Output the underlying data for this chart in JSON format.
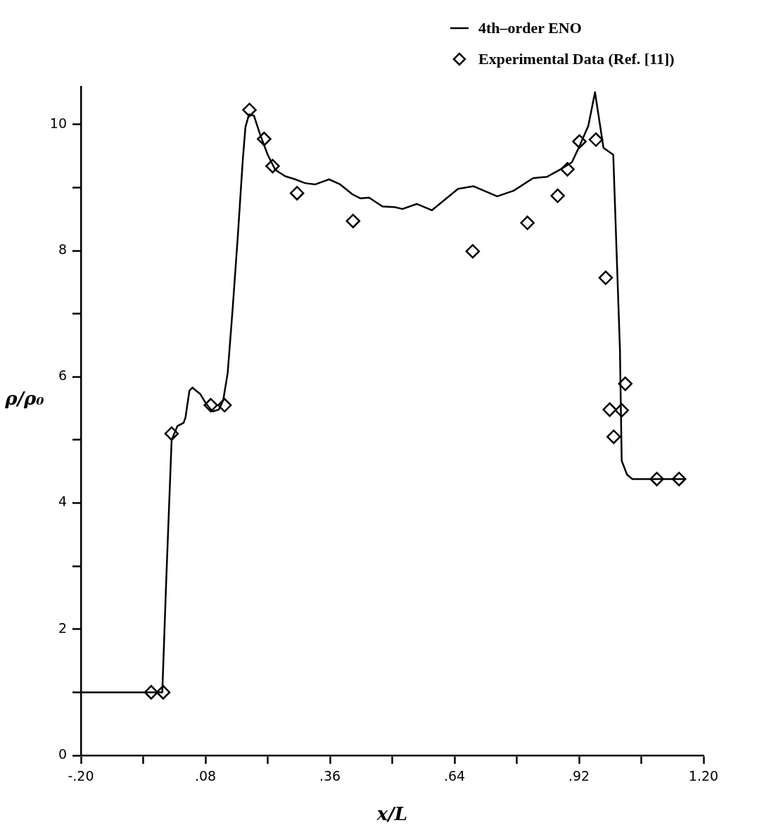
{
  "chart_data": {
    "type": "line",
    "xlabel": "x/L",
    "ylabel": "ρ/ρ₀",
    "xlim": [
      -0.2,
      1.2
    ],
    "xticks": [
      {
        "value": -0.2,
        "label": "-.20"
      },
      {
        "value": -0.06,
        "label": null
      },
      {
        "value": 0.08,
        "label": ".08"
      },
      {
        "value": 0.22,
        "label": null
      },
      {
        "value": 0.36,
        "label": ".36"
      },
      {
        "value": 0.5,
        "label": null
      },
      {
        "value": 0.64,
        "label": ".64"
      },
      {
        "value": 0.78,
        "label": null
      },
      {
        "value": 0.92,
        "label": ".92"
      },
      {
        "value": 1.06,
        "label": null
      },
      {
        "value": 1.2,
        "label": "1.20"
      }
    ],
    "ylim": [
      0,
      10.6
    ],
    "yticks": [
      0,
      {
        "value": 1,
        "label": null
      },
      2,
      {
        "value": 3,
        "label": null
      },
      4,
      {
        "value": 5,
        "label": null
      },
      6,
      {
        "value": 7,
        "label": null
      },
      8,
      {
        "value": 9,
        "label": null
      },
      10
    ],
    "grid": false,
    "legend": "top right",
    "series": [
      {
        "name": "4th–order ENO",
        "type": "line",
        "color": "#000000",
        "marker": "none",
        "line_style": "solid",
        "x": [
          -0.2,
          -0.017,
          -0.008,
          0.004,
          0.017,
          0.031,
          0.035,
          0.044,
          0.051,
          0.057,
          0.068,
          0.082,
          0.096,
          0.11,
          0.12,
          0.13,
          0.141,
          0.153,
          0.164,
          0.17,
          0.178,
          0.189,
          0.203,
          0.22,
          0.237,
          0.259,
          0.282,
          0.304,
          0.327,
          0.358,
          0.383,
          0.411,
          0.428,
          0.448,
          0.478,
          0.506,
          0.523,
          0.555,
          0.589,
          0.648,
          0.683,
          0.736,
          0.773,
          0.817,
          0.848,
          0.879,
          0.904,
          0.922,
          0.941,
          0.956,
          0.975,
          0.997,
          1.012,
          1.016,
          1.028,
          1.04,
          1.16
        ],
        "values": [
          1,
          1,
          2.8,
          5.0,
          5.22,
          5.27,
          5.35,
          5.78,
          5.83,
          5.79,
          5.73,
          5.57,
          5.45,
          5.48,
          5.63,
          6.06,
          7.06,
          8.25,
          9.44,
          9.96,
          10.16,
          10.14,
          9.84,
          9.52,
          9.28,
          9.18,
          9.13,
          9.07,
          9.05,
          9.13,
          9.05,
          8.89,
          8.83,
          8.84,
          8.7,
          8.69,
          8.66,
          8.74,
          8.64,
          8.98,
          9.02,
          8.86,
          8.95,
          9.15,
          9.17,
          9.29,
          9.4,
          9.67,
          9.98,
          10.51,
          9.63,
          9.52,
          6.44,
          4.67,
          4.45,
          4.38,
          4.38
        ]
      },
      {
        "name": "Experimental Data (Ref. [11])",
        "type": "scatter",
        "color": "#000000",
        "marker": "diamond",
        "x": [
          -0.042,
          -0.015,
          0.004,
          0.092,
          0.123,
          0.179,
          0.212,
          0.231,
          0.286,
          0.412,
          0.681,
          0.804,
          0.872,
          0.894,
          0.921,
          0.958,
          0.98,
          0.989,
          0.998,
          1.016,
          1.024,
          1.095,
          1.145
        ],
        "values": [
          1,
          1,
          5.1,
          5.55,
          5.55,
          10.23,
          9.77,
          9.34,
          8.91,
          8.47,
          7.99,
          8.44,
          8.87,
          9.29,
          9.73,
          9.76,
          7.57,
          5.48,
          5.05,
          5.47,
          5.89,
          4.38,
          4.38
        ]
      }
    ]
  }
}
